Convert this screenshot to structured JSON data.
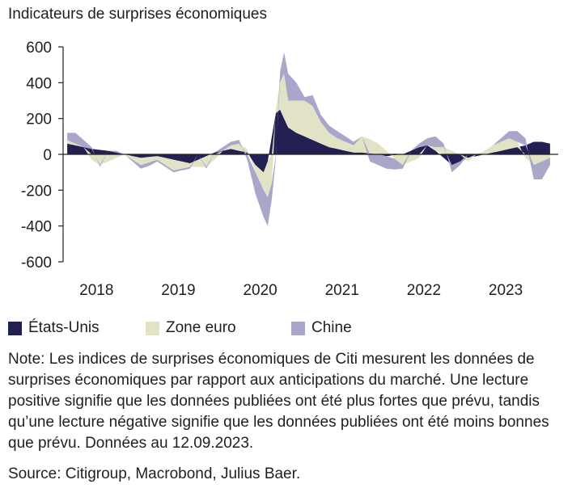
{
  "chart_data": {
    "type": "area",
    "title": "Indicateurs de surprises économiques",
    "xlabel": "",
    "ylabel": "",
    "ylim": [
      -600,
      600
    ],
    "yticks": [
      "600",
      "400",
      "200",
      "0",
      "-200",
      "-400",
      "-600"
    ],
    "ytick_values": [
      600,
      400,
      200,
      0,
      -200,
      -400,
      -600
    ],
    "xticks": [
      "2018",
      "2019",
      "2020",
      "2021",
      "2022",
      "2023"
    ],
    "xtick_values": [
      2018.0,
      2019.0,
      2020.0,
      2021.0,
      2022.0,
      2023.0
    ],
    "legend_position": "bottom",
    "stacked": true,
    "x": [
      2017.8,
      2017.9,
      2018.0,
      2018.1,
      2018.2,
      2018.3,
      2018.4,
      2018.5,
      2018.6,
      2018.7,
      2018.8,
      2018.9,
      2019.0,
      2019.1,
      2019.2,
      2019.3,
      2019.4,
      2019.5,
      2019.6,
      2019.7,
      2019.8,
      2019.9,
      2020.0,
      2020.1,
      2020.2,
      2020.25,
      2020.3,
      2020.35,
      2020.4,
      2020.45,
      2020.5,
      2020.6,
      2020.7,
      2020.8,
      2020.9,
      2021.0,
      2021.1,
      2021.2,
      2021.3,
      2021.4,
      2021.5,
      2021.6,
      2021.7,
      2021.8,
      2021.9,
      2022.0,
      2022.1,
      2022.2,
      2022.3,
      2022.4,
      2022.5,
      2022.6,
      2022.7,
      2022.8,
      2022.9,
      2023.0,
      2023.1,
      2023.2,
      2023.3,
      2023.4,
      2023.5,
      2023.6,
      2023.7
    ],
    "series": [
      {
        "name": "États-Unis",
        "color": "#221f52",
        "values": [
          60,
          50,
          40,
          30,
          25,
          20,
          10,
          0,
          -10,
          -20,
          -15,
          -10,
          -20,
          -30,
          -40,
          -50,
          -30,
          -10,
          10,
          20,
          30,
          20,
          10,
          -60,
          -100,
          -40,
          100,
          230,
          250,
          200,
          150,
          120,
          100,
          80,
          60,
          40,
          30,
          20,
          10,
          10,
          5,
          0,
          -10,
          -5,
          0,
          20,
          40,
          50,
          20,
          -20,
          -60,
          -40,
          -20,
          -10,
          0,
          10,
          20,
          30,
          40,
          50,
          70,
          70,
          60
        ]
      },
      {
        "name": "Zone euro",
        "color": "#e2e2c6",
        "values": [
          20,
          10,
          0,
          -30,
          -60,
          -40,
          -20,
          0,
          -20,
          -40,
          -30,
          -20,
          -40,
          -60,
          -40,
          -20,
          -40,
          -60,
          -30,
          0,
          20,
          40,
          20,
          -40,
          -100,
          -200,
          -160,
          20,
          150,
          250,
          150,
          180,
          200,
          190,
          120,
          80,
          60,
          50,
          40,
          90,
          80,
          60,
          20,
          -20,
          -60,
          -40,
          -20,
          0,
          20,
          40,
          20,
          0,
          -20,
          0,
          20,
          40,
          50,
          60,
          30,
          -20,
          -60,
          -40,
          -20
        ]
      },
      {
        "name": "Chine",
        "color": "#a8a6c9",
        "values": [
          40,
          60,
          40,
          10,
          -10,
          0,
          10,
          0,
          -10,
          -20,
          -20,
          -10,
          -10,
          -10,
          -10,
          -10,
          0,
          -10,
          0,
          20,
          20,
          20,
          -30,
          -120,
          -150,
          -160,
          -90,
          -20,
          60,
          120,
          150,
          100,
          20,
          60,
          40,
          40,
          40,
          30,
          20,
          0,
          -40,
          -60,
          -70,
          -60,
          -20,
          0,
          20,
          40,
          60,
          20,
          -40,
          -20,
          0,
          0,
          0,
          0,
          20,
          40,
          60,
          40,
          -80,
          -100,
          -40
        ]
      }
    ]
  },
  "legend": [
    {
      "label": "États-Unis",
      "color": "#221f52"
    },
    {
      "label": "Zone euro",
      "color": "#e2e2c6"
    },
    {
      "label": "Chine",
      "color": "#a8a6c9"
    }
  ],
  "note": "Note: Les indices de surprises économiques de Citi mesurent les données de surprises économiques par rapport aux anticipations du marché. Une lecture positive signifie que les données publiées ont été plus fortes que prévu, tandis qu’une lecture négative signifie que les données publiées ont été moins bonnes que prévu. Données au 12.09.2023.",
  "source": "Source: Citigroup, Macrobond, Julius Baer."
}
